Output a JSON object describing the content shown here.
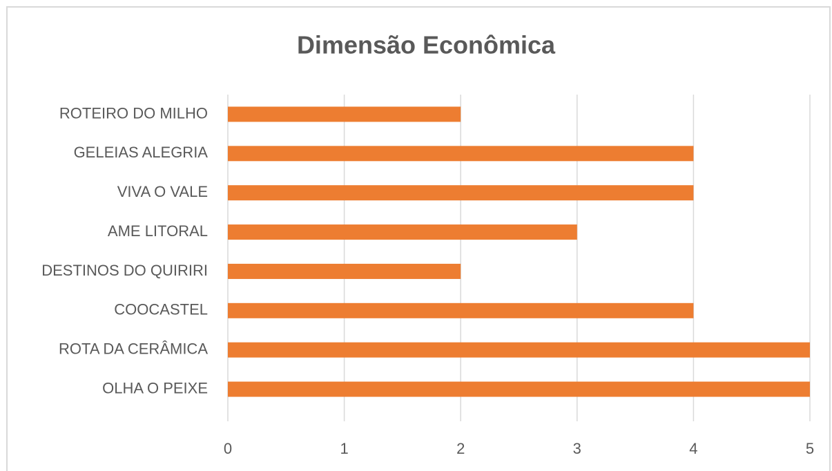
{
  "chart_data": {
    "type": "hbar",
    "title": "Dimensão Econômica",
    "categories": [
      "ROTEIRO DO MILHO",
      "GELEIAS ALEGRIA",
      "VIVA O VALE",
      "AME LITORAL",
      "DESTINOS DO QUIRIRI",
      "COOCASTEL",
      "ROTA DA CERÂMICA",
      "OLHA O PEIXE"
    ],
    "values": [
      2,
      4,
      4,
      3,
      2,
      4,
      5,
      5
    ],
    "color": "#ed7d31",
    "xlim": [
      0,
      5
    ],
    "xticks": [
      0,
      1,
      2,
      3,
      4,
      5
    ],
    "grid": true
  }
}
